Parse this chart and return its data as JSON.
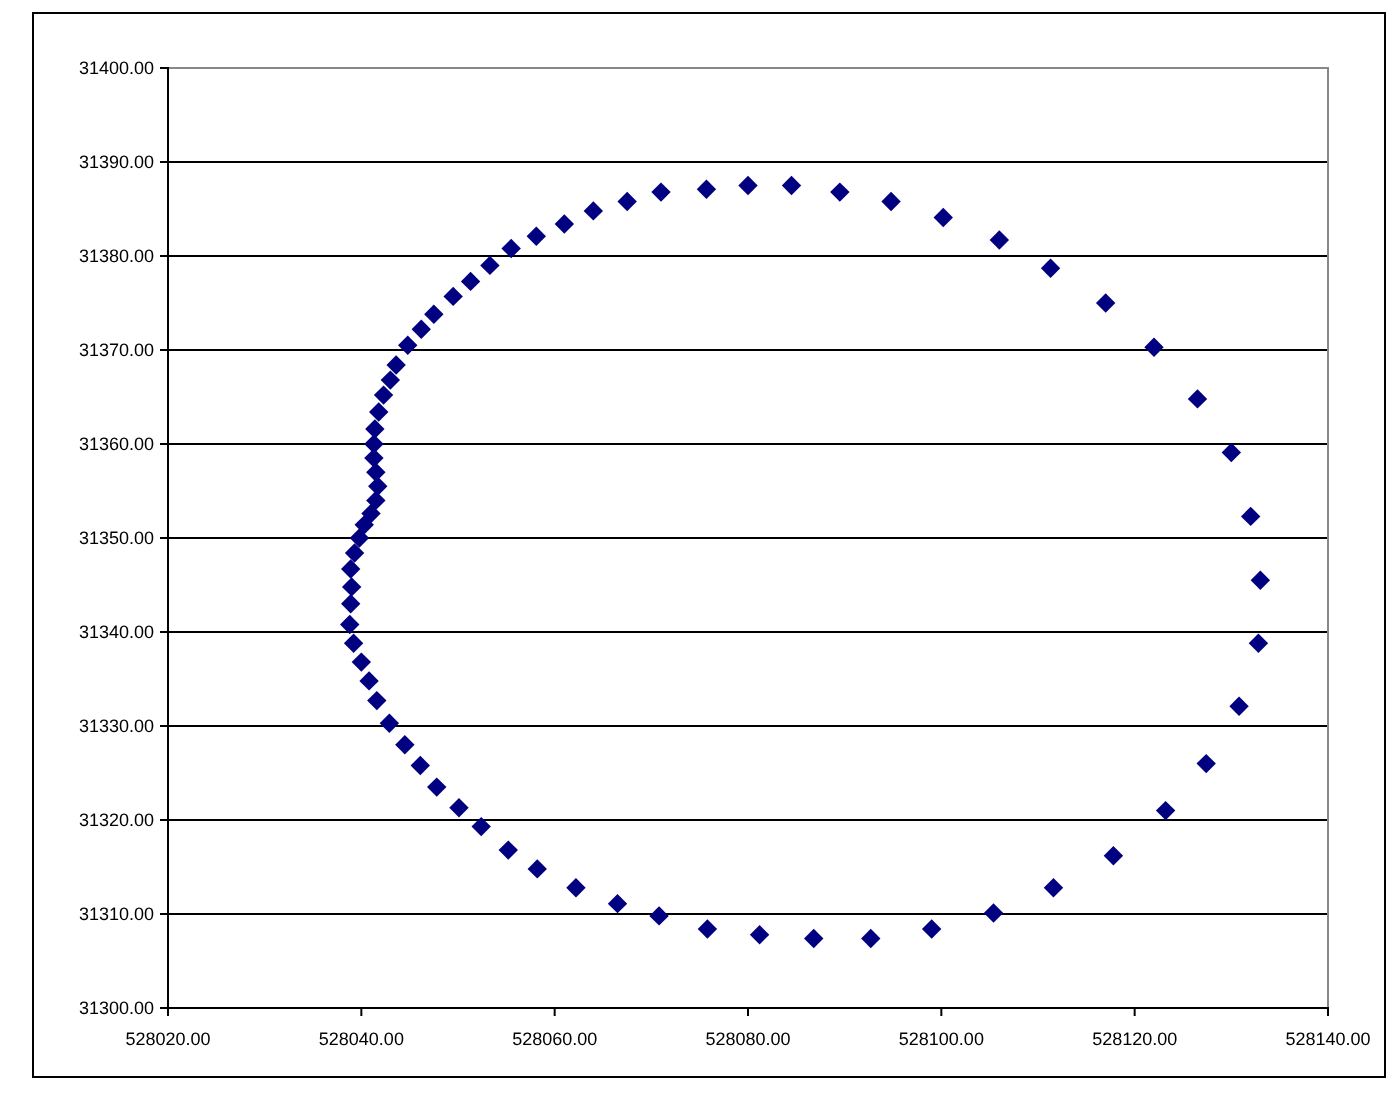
{
  "chart_data": {
    "type": "scatter",
    "marker": "diamond",
    "grid": "y",
    "xlim": [
      528020,
      528140
    ],
    "ylim": [
      31300,
      31400
    ],
    "xticks": [
      {
        "value": 528020,
        "label": "528020.00"
      },
      {
        "value": 528040,
        "label": "528040.00"
      },
      {
        "value": 528060,
        "label": "528060.00"
      },
      {
        "value": 528080,
        "label": "528080.00"
      },
      {
        "value": 528100,
        "label": "528100.00"
      },
      {
        "value": 528120,
        "label": "528120.00"
      },
      {
        "value": 528140,
        "label": "528140.00"
      }
    ],
    "yticks": [
      {
        "value": 31300,
        "label": "31300.00"
      },
      {
        "value": 31310,
        "label": "31310.00"
      },
      {
        "value": 31320,
        "label": "31320.00"
      },
      {
        "value": 31330,
        "label": "31330.00"
      },
      {
        "value": 31340,
        "label": "31340.00"
      },
      {
        "value": 31350,
        "label": "31350.00"
      },
      {
        "value": 31360,
        "label": "31360.00"
      },
      {
        "value": 31370,
        "label": "31370.00"
      },
      {
        "value": 31380,
        "label": "31380.00"
      },
      {
        "value": 31390,
        "label": "31390.00"
      },
      {
        "value": 31400,
        "label": "31400.00"
      }
    ],
    "series": [
      {
        "color": "#000080",
        "x": [
          528055.5,
          528058.1,
          528061,
          528064,
          528067.5,
          528071,
          528075.7,
          528080,
          528084.5,
          528089.5,
          528094.8,
          528100.2,
          528106,
          528111.3,
          528117,
          528122,
          528126.5,
          528130,
          528132,
          528133,
          528132.8,
          528130.8,
          528127.4,
          528123.2,
          528117.8,
          528111.6,
          528105.4,
          528099,
          528092.7,
          528086.8,
          528081.2,
          528075.8,
          528070.8,
          528066.5,
          528062.2,
          528058.2,
          528055.2,
          528052.4,
          528050.1,
          528047.8,
          528046.1,
          528044.5,
          528042.9,
          528041.6,
          528040.8,
          528040,
          528039.2,
          528038.8,
          528038.9,
          528039,
          528038.9,
          528039.3,
          528039.8,
          528040.3,
          528041,
          528041.5,
          528041.7,
          528041.5,
          528041.3,
          528041.3,
          528041.4,
          528041.8,
          528042.3,
          528043,
          528043.6,
          528044.8,
          528046.2,
          528047.5,
          528049.5,
          528051.3,
          528053.3
        ],
        "values": [
          31380.8,
          31382.1,
          31383.4,
          31384.8,
          31385.8,
          31386.8,
          31387.1,
          31387.5,
          31387.5,
          31386.8,
          31385.8,
          31384.1,
          31381.7,
          31378.7,
          31375,
          31370.3,
          31364.8,
          31359.1,
          31352.3,
          31345.5,
          31338.8,
          31332.1,
          31326,
          31321,
          31316.2,
          31312.8,
          31310.1,
          31308.4,
          31307.4,
          31307.4,
          31307.8,
          31308.4,
          31309.8,
          31311.1,
          31312.8,
          31314.8,
          31316.8,
          31319.3,
          31321.3,
          31323.5,
          31325.8,
          31328,
          31330.3,
          31332.7,
          31334.8,
          31336.8,
          31338.8,
          31340.8,
          31343,
          31344.8,
          31346.7,
          31348.4,
          31350,
          31351.4,
          31352.6,
          31354,
          31355.5,
          31357,
          31358.5,
          31360,
          31361.6,
          31363.4,
          31365.2,
          31366.8,
          31368.4,
          31370.5,
          31372.2,
          31373.8,
          31375.7,
          31377.3,
          31379
        ]
      }
    ]
  }
}
